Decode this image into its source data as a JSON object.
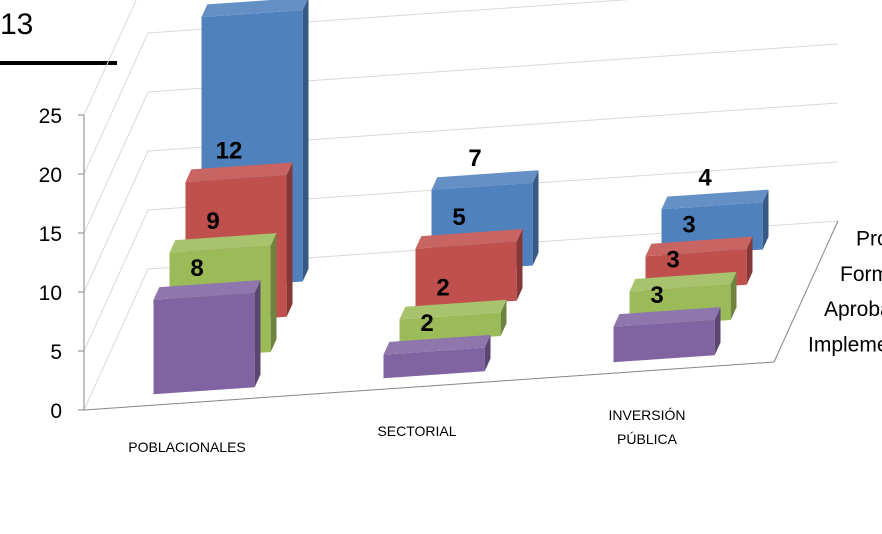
{
  "header": {
    "fragment": "13"
  },
  "colors": {
    "Proyectadas": "#4f81bd",
    "Formuladas": "#c0504d",
    "Aprobadas": "#9bbb59",
    "Implementadas": "#8064a2"
  },
  "chart_data": {
    "type": "bar",
    "variant": "3d-grouped-bar",
    "categories": [
      "POBLACIONALES",
      "SECTORIAL",
      "INVERSIÓN PÚBLICA"
    ],
    "series": [
      {
        "name": "Proyectadas",
        "values": [
          23,
          7,
          4
        ]
      },
      {
        "name": "Formuladas",
        "values": [
          12,
          5,
          3
        ]
      },
      {
        "name": "Aprobadas",
        "values": [
          9,
          2,
          3
        ]
      },
      {
        "name": "Implementadas",
        "values": [
          8,
          2,
          3
        ]
      }
    ],
    "ylim": [
      0,
      25
    ],
    "yticks": [
      0,
      5,
      10,
      15,
      20,
      25
    ],
    "grid": true,
    "data_labels": true,
    "title": "",
    "xlabel": "",
    "ylabel": ""
  }
}
